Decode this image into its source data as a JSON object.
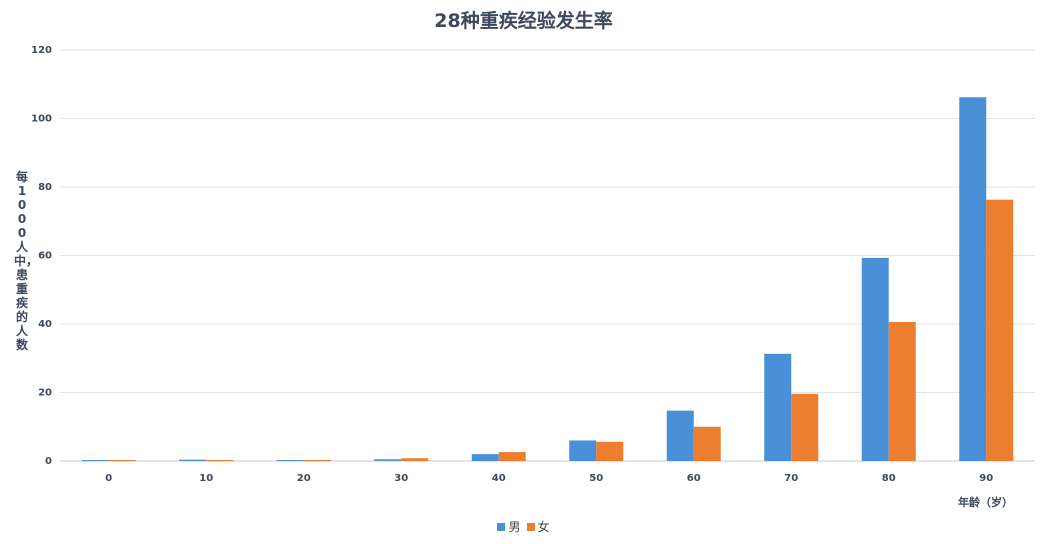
{
  "chart_data": {
    "type": "bar",
    "title": "28种重疾经验发生率",
    "xlabel": "年龄（岁）",
    "ylabel": "每1000人中，患重疾的人数",
    "categories": [
      "0",
      "10",
      "20",
      "30",
      "40",
      "50",
      "60",
      "70",
      "80",
      "90"
    ],
    "series": [
      {
        "name": "男",
        "color": "#4a90d9",
        "values": [
          0.2,
          0.4,
          0.2,
          0.5,
          2.0,
          6.0,
          14.7,
          31.3,
          59.3,
          106.2
        ]
      },
      {
        "name": "女",
        "color": "#ed7d31",
        "values": [
          0.2,
          0.2,
          0.2,
          0.8,
          2.6,
          5.6,
          10.0,
          19.6,
          40.6,
          76.3
        ]
      }
    ],
    "ylim": [
      0,
      120
    ],
    "yticks": [
      0,
      20,
      40,
      60,
      80,
      100,
      120
    ],
    "grid": true,
    "legend_position": "bottom-center"
  }
}
